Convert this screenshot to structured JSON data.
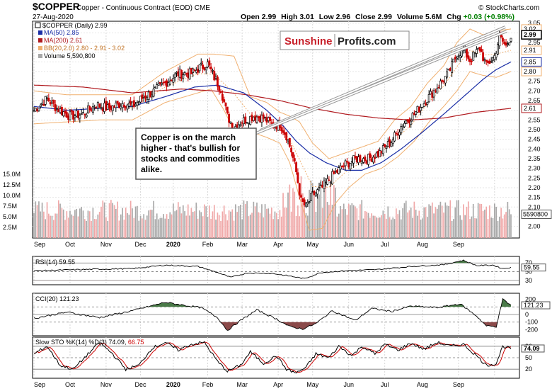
{
  "header": {
    "symbol": "$COPPER",
    "description": "Copper - Continuous Contract (EOD)",
    "exchange": "CME",
    "date": "27-Aug-2020",
    "open_label": "Open",
    "open": "2.99",
    "high_label": "High",
    "high": "3.01",
    "low_label": "Low",
    "low": "2.96",
    "close_label": "Close",
    "close": "2.99",
    "volume_label": "Volume",
    "volume": "5.6M",
    "chg_label": "Chg",
    "chg": "+0.03 (+0.98%)",
    "credit": "© StockCharts.com"
  },
  "legend": {
    "main": "$COPPER (Daily) 2.99",
    "ma50": "MA(50) 2.85",
    "ma200": "MA(200) 2.61",
    "bb": "BB(20,2.0) 2.80 - 2.91 - 3.02",
    "volume": "Volume 5,590,800"
  },
  "watermark": {
    "brand_a": "Sunshine",
    "brand_b": "Profits.com"
  },
  "callout": {
    "lines": [
      "Copper is on the march",
      "higher - that's bullish for",
      "stocks and commodities",
      "alike."
    ]
  },
  "colors": {
    "up": "#000000",
    "down": "#cc0000",
    "ma50": "#1a2ea6",
    "ma200": "#b0191e",
    "bb": "#f0b070",
    "vol_up": "#a8a8a8",
    "vol_down": "#f0a8a8",
    "rsi_fill": "#4a7a48",
    "osc_fill_neg": "#8b4a4a",
    "sto_k": "#000000",
    "sto_d": "#cc0000"
  },
  "chart_data": {
    "type": "candlestick",
    "title": "$COPPER (Daily)",
    "months": [
      "Sep",
      "Oct",
      "Nov",
      "Dec",
      "2020",
      "Feb",
      "Mar",
      "Apr",
      "May",
      "Jun",
      "Jul",
      "Aug",
      "Sep"
    ],
    "price_axis": {
      "range": [
        1.94,
        3.06
      ],
      "ticks": [
        "3.05",
        "3.00",
        "2.95",
        "2.90",
        "2.85",
        "2.80",
        "2.75",
        "2.70",
        "2.65",
        "2.60",
        "2.55",
        "2.50",
        "2.45",
        "2.40",
        "2.35",
        "2.30",
        "2.25",
        "2.20",
        "2.15",
        "2.10",
        "2.05",
        "2.00"
      ],
      "tags": [
        {
          "label": "3.02",
          "value": 3.02,
          "color": "#f0b070",
          "fill": "#ffffff",
          "bold": false
        },
        {
          "label": "2.99",
          "value": 2.99,
          "color": "#000000",
          "fill": "#ffffff",
          "bold": true
        },
        {
          "label": "2.91",
          "value": 2.91,
          "color": "#f0b070",
          "fill": "#ffffff",
          "bold": false
        },
        {
          "label": "2.85",
          "value": 2.85,
          "color": "#1a2ea6",
          "fill": "#ffffff",
          "bold": false
        },
        {
          "label": "2.80",
          "value": 2.8,
          "color": "#f0b070",
          "fill": "#ffffff",
          "bold": false
        },
        {
          "label": "2.61",
          "value": 2.61,
          "color": "#b0191e",
          "fill": "#ffffff",
          "bold": false
        }
      ]
    },
    "price_path": [
      [
        0,
        2.6
      ],
      [
        8,
        2.66
      ],
      [
        14,
        2.61
      ],
      [
        22,
        2.57
      ],
      [
        30,
        2.58
      ],
      [
        38,
        2.63
      ],
      [
        45,
        2.61
      ],
      [
        55,
        2.64
      ],
      [
        60,
        2.62
      ],
      [
        67,
        2.67
      ],
      [
        72,
        2.69
      ],
      [
        80,
        2.74
      ],
      [
        88,
        2.79
      ],
      [
        96,
        2.79
      ],
      [
        101,
        2.82
      ],
      [
        106,
        2.84
      ],
      [
        110,
        2.77
      ],
      [
        114,
        2.71
      ],
      [
        118,
        2.57
      ],
      [
        122,
        2.51
      ],
      [
        126,
        2.54
      ],
      [
        134,
        2.57
      ],
      [
        140,
        2.56
      ],
      [
        146,
        2.52
      ],
      [
        150,
        2.53
      ],
      [
        154,
        2.47
      ],
      [
        157,
        2.39
      ],
      [
        160,
        2.28
      ],
      [
        163,
        2.13
      ],
      [
        166,
        2.1
      ],
      [
        170,
        2.16
      ],
      [
        176,
        2.2
      ],
      [
        183,
        2.27
      ],
      [
        190,
        2.32
      ],
      [
        197,
        2.35
      ],
      [
        204,
        2.35
      ],
      [
        211,
        2.38
      ],
      [
        218,
        2.44
      ],
      [
        225,
        2.53
      ],
      [
        232,
        2.58
      ],
      [
        239,
        2.65
      ],
      [
        246,
        2.72
      ],
      [
        253,
        2.79
      ],
      [
        258,
        2.89
      ],
      [
        262,
        2.91
      ],
      [
        266,
        2.86
      ],
      [
        272,
        2.92
      ],
      [
        276,
        2.83
      ],
      [
        281,
        2.88
      ],
      [
        284,
        2.98
      ],
      [
        288,
        2.93
      ],
      [
        291,
        2.99
      ]
    ],
    "ma50_path": [
      [
        0,
        2.62
      ],
      [
        20,
        2.6
      ],
      [
        40,
        2.61
      ],
      [
        60,
        2.62
      ],
      [
        80,
        2.67
      ],
      [
        98,
        2.72
      ],
      [
        112,
        2.73
      ],
      [
        128,
        2.69
      ],
      [
        142,
        2.6
      ],
      [
        152,
        2.52
      ],
      [
        160,
        2.44
      ],
      [
        168,
        2.38
      ],
      [
        178,
        2.33
      ],
      [
        190,
        2.29
      ],
      [
        200,
        2.29
      ],
      [
        212,
        2.33
      ],
      [
        224,
        2.4
      ],
      [
        236,
        2.48
      ],
      [
        250,
        2.58
      ],
      [
        262,
        2.67
      ],
      [
        274,
        2.76
      ],
      [
        282,
        2.81
      ],
      [
        291,
        2.85
      ]
    ],
    "ma200_path": [
      [
        0,
        2.73
      ],
      [
        30,
        2.72
      ],
      [
        60,
        2.69
      ],
      [
        90,
        2.71
      ],
      [
        110,
        2.7
      ],
      [
        130,
        2.68
      ],
      [
        150,
        2.65
      ],
      [
        170,
        2.61
      ],
      [
        190,
        2.58
      ],
      [
        210,
        2.56
      ],
      [
        230,
        2.55
      ],
      [
        250,
        2.56
      ],
      [
        270,
        2.59
      ],
      [
        291,
        2.61
      ]
    ],
    "bb_upper_path": [
      [
        0,
        2.7
      ],
      [
        20,
        2.68
      ],
      [
        40,
        2.68
      ],
      [
        60,
        2.68
      ],
      [
        80,
        2.8
      ],
      [
        100,
        2.89
      ],
      [
        110,
        2.89
      ],
      [
        122,
        2.88
      ],
      [
        132,
        2.67
      ],
      [
        142,
        2.64
      ],
      [
        150,
        2.59
      ],
      [
        156,
        2.57
      ],
      [
        162,
        2.54
      ],
      [
        170,
        2.43
      ],
      [
        180,
        2.35
      ],
      [
        190,
        2.38
      ],
      [
        200,
        2.41
      ],
      [
        210,
        2.44
      ],
      [
        220,
        2.55
      ],
      [
        230,
        2.62
      ],
      [
        240,
        2.74
      ],
      [
        250,
        2.83
      ],
      [
        258,
        2.95
      ],
      [
        266,
        3.02
      ],
      [
        274,
        2.99
      ],
      [
        282,
        3.01
      ],
      [
        291,
        3.02
      ]
    ],
    "bb_lower_path": [
      [
        0,
        2.53
      ],
      [
        20,
        2.54
      ],
      [
        40,
        2.55
      ],
      [
        60,
        2.55
      ],
      [
        80,
        2.64
      ],
      [
        100,
        2.69
      ],
      [
        108,
        2.71
      ],
      [
        116,
        2.6
      ],
      [
        124,
        2.46
      ],
      [
        132,
        2.49
      ],
      [
        142,
        2.46
      ],
      [
        150,
        2.43
      ],
      [
        156,
        2.33
      ],
      [
        162,
        2.15
      ],
      [
        168,
        1.98
      ],
      [
        176,
        1.99
      ],
      [
        184,
        2.12
      ],
      [
        192,
        2.2
      ],
      [
        202,
        2.27
      ],
      [
        212,
        2.3
      ],
      [
        222,
        2.36
      ],
      [
        232,
        2.44
      ],
      [
        242,
        2.55
      ],
      [
        250,
        2.62
      ],
      [
        258,
        2.7
      ],
      [
        266,
        2.8
      ],
      [
        274,
        2.78
      ],
      [
        282,
        2.77
      ],
      [
        291,
        2.8
      ]
    ],
    "volume_axis": {
      "ticks": [
        "15.0M",
        "12.5M",
        "10.0M",
        "7.5M",
        "5.0M",
        "2.5M"
      ],
      "last_label": "5590800",
      "last_value": 5590800
    },
    "rsi": {
      "label": "RSI(14) 59.55",
      "value": 59.55,
      "ticks": [
        "70",
        "50",
        "30"
      ],
      "path": [
        [
          0,
          52
        ],
        [
          30,
          55
        ],
        [
          60,
          57
        ],
        [
          80,
          65
        ],
        [
          100,
          62
        ],
        [
          112,
          48
        ],
        [
          120,
          37
        ],
        [
          130,
          47
        ],
        [
          145,
          46
        ],
        [
          156,
          40
        ],
        [
          165,
          34
        ],
        [
          175,
          48
        ],
        [
          190,
          52
        ],
        [
          210,
          55
        ],
        [
          230,
          62
        ],
        [
          250,
          66
        ],
        [
          262,
          76
        ],
        [
          270,
          64
        ],
        [
          280,
          65
        ],
        [
          286,
          57
        ],
        [
          291,
          59.55
        ]
      ]
    },
    "cci": {
      "label": "CCI(20) 121.23",
      "value": 121.23,
      "ticks": [
        "200",
        "100",
        "0",
        "-100",
        "-200"
      ],
      "path": [
        [
          0,
          -50
        ],
        [
          20,
          30
        ],
        [
          40,
          -40
        ],
        [
          60,
          50
        ],
        [
          80,
          160
        ],
        [
          92,
          120
        ],
        [
          102,
          90
        ],
        [
          112,
          -40
        ],
        [
          118,
          -210
        ],
        [
          126,
          -80
        ],
        [
          136,
          60
        ],
        [
          148,
          -60
        ],
        [
          156,
          -160
        ],
        [
          164,
          -190
        ],
        [
          172,
          -120
        ],
        [
          182,
          50
        ],
        [
          196,
          -80
        ],
        [
          206,
          80
        ],
        [
          218,
          40
        ],
        [
          230,
          110
        ],
        [
          246,
          90
        ],
        [
          260,
          140
        ],
        [
          270,
          -20
        ],
        [
          276,
          -150
        ],
        [
          282,
          -160
        ],
        [
          286,
          200
        ],
        [
          291,
          121.23
        ]
      ]
    },
    "sto": {
      "label": "Slow STO %K(14) %D(3)",
      "k": 74.09,
      "d": 66.75,
      "k_label": "74.09",
      "d_label": "66.75",
      "ticks": [
        "80",
        "50",
        "20"
      ],
      "k_path": [
        [
          0,
          60
        ],
        [
          8,
          80
        ],
        [
          16,
          30
        ],
        [
          24,
          20
        ],
        [
          32,
          55
        ],
        [
          40,
          90
        ],
        [
          48,
          60
        ],
        [
          56,
          20
        ],
        [
          64,
          30
        ],
        [
          72,
          75
        ],
        [
          80,
          90
        ],
        [
          88,
          70
        ],
        [
          96,
          85
        ],
        [
          104,
          90
        ],
        [
          112,
          40
        ],
        [
          118,
          15
        ],
        [
          126,
          30
        ],
        [
          132,
          65
        ],
        [
          140,
          35
        ],
        [
          148,
          55
        ],
        [
          154,
          20
        ],
        [
          160,
          10
        ],
        [
          166,
          25
        ],
        [
          172,
          60
        ],
        [
          180,
          50
        ],
        [
          186,
          80
        ],
        [
          194,
          55
        ],
        [
          200,
          80
        ],
        [
          208,
          60
        ],
        [
          214,
          85
        ],
        [
          222,
          70
        ],
        [
          230,
          88
        ],
        [
          238,
          72
        ],
        [
          246,
          90
        ],
        [
          254,
          80
        ],
        [
          262,
          85
        ],
        [
          270,
          55
        ],
        [
          276,
          30
        ],
        [
          282,
          35
        ],
        [
          286,
          80
        ],
        [
          291,
          74.09
        ]
      ]
    },
    "x_axis_bottom": [
      "Sep",
      "Oct",
      "Nov",
      "Dec",
      "2020",
      "Feb",
      "Mar",
      "Apr",
      "May",
      "Jun",
      "Jul",
      "Aug",
      "Sep"
    ]
  }
}
